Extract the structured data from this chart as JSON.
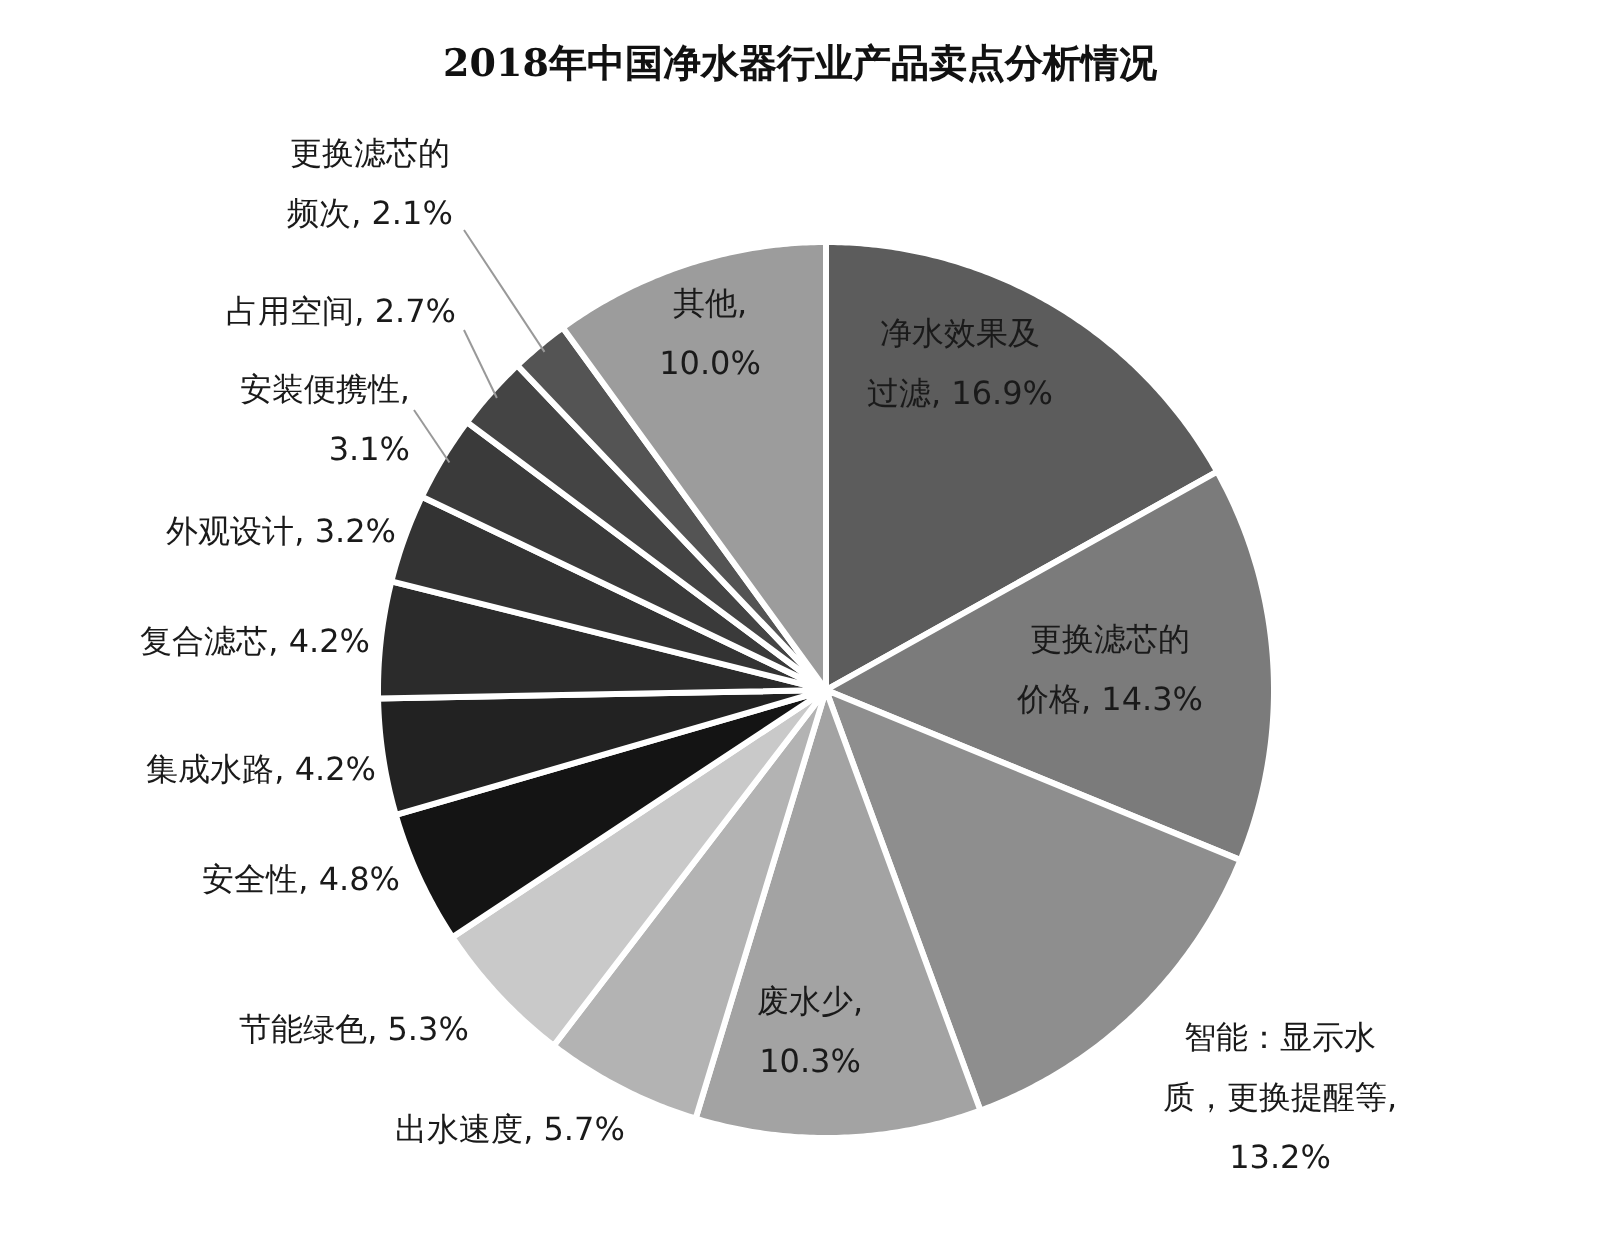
{
  "chart_data": {
    "type": "pie",
    "title": "2018年中国净水器行业产品卖点分析情况",
    "categories": [
      "净水效果及过滤",
      "更换滤芯的价格",
      "智能：显示水质，更换提醒等",
      "废水少",
      "出水速度",
      "节能绿色",
      "安全性",
      "集成水路",
      "复合滤芯",
      "外观设计",
      "安装便携性",
      "占用空间",
      "更换滤芯的频次",
      "其他"
    ],
    "values": [
      16.9,
      14.3,
      13.2,
      10.3,
      5.7,
      5.3,
      4.8,
      4.2,
      4.2,
      3.2,
      3.1,
      2.7,
      2.1,
      10.0
    ],
    "value_labels": [
      ", 16.9%",
      ", 14.3%",
      ", 13.2%",
      ", 10.3%",
      ", 5.7%",
      ", 5.3%",
      ", 4.8%",
      ", 4.2%",
      ", 4.2%",
      ", 3.2%",
      ", 3.1%",
      ", 2.7%",
      ", 2.1%",
      ", 10.0%"
    ],
    "colors": [
      "#5c5c5c",
      "#7b7b7b",
      "#8e8e8e",
      "#a3a3a3",
      "#b3b3b3",
      "#c9c9c9",
      "#141414",
      "#222222",
      "#2b2b2b",
      "#333333",
      "#3a3a3a",
      "#444444",
      "#545454",
      "#9c9c9c"
    ]
  }
}
